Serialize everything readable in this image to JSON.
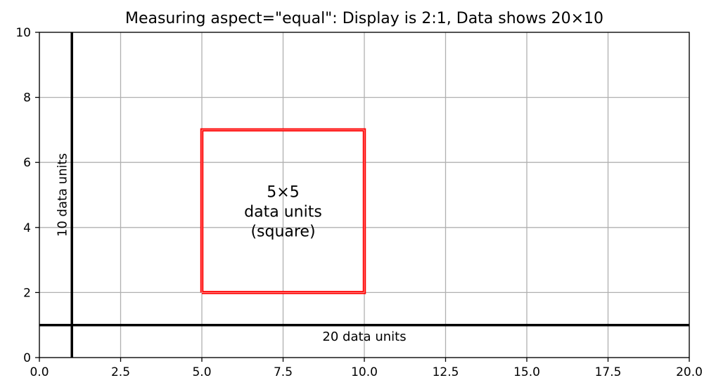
{
  "chart_data": {
    "type": "line",
    "title": "Measuring aspect=\"equal\": Display is 2:1, Data shows 20×10",
    "xlabel": "",
    "ylabel": "",
    "xlim": [
      0,
      20
    ],
    "ylim": [
      0,
      10
    ],
    "grid": true,
    "x_ticks": [
      "0.0",
      "2.5",
      "5.0",
      "7.5",
      "10.0",
      "12.5",
      "15.0",
      "17.5",
      "20.0"
    ],
    "x_tick_values": [
      0,
      2.5,
      5,
      7.5,
      10,
      12.5,
      15,
      17.5,
      20
    ],
    "y_ticks": [
      "0",
      "2",
      "4",
      "6",
      "8",
      "10"
    ],
    "y_tick_values": [
      0,
      2,
      4,
      6,
      8,
      10
    ],
    "square": {
      "x": [
        5,
        10,
        10,
        5,
        5
      ],
      "y": [
        2,
        2,
        7,
        7,
        2
      ],
      "color": "#ff0000",
      "label_lines": [
        "5×5",
        "data units",
        "(square)"
      ],
      "label_center": [
        7.5,
        4.5
      ]
    },
    "horizontal_line": {
      "y": 1,
      "color": "#000000",
      "label": "20 data units",
      "label_pos": [
        10,
        0.65
      ]
    },
    "vertical_line": {
      "x": 1,
      "color": "#000000",
      "label": "10 data units",
      "label_pos": [
        0.7,
        5
      ]
    }
  }
}
